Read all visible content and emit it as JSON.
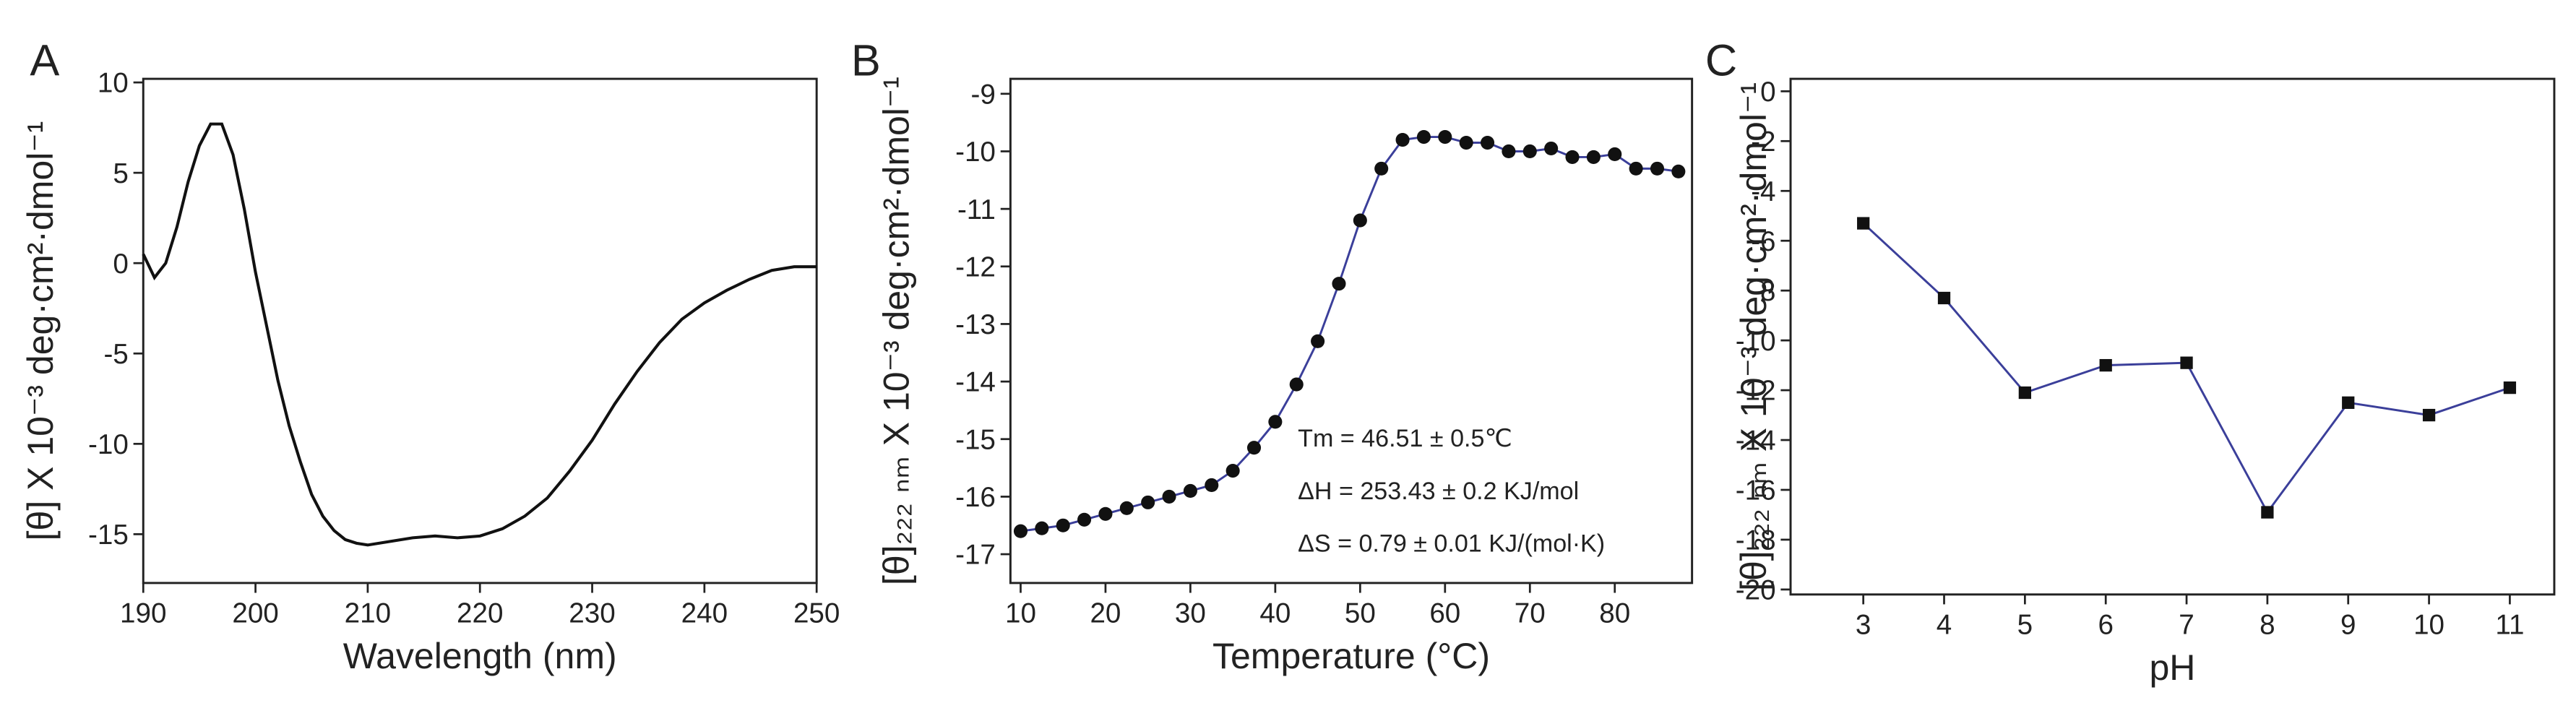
{
  "chart_data": [
    {
      "type": "line",
      "panel_label": "A",
      "x_label": "Wavelength (nm)",
      "y_label": "[θ] X 10⁻³ deg·cm²·dmol⁻¹",
      "x": [
        190,
        191,
        192,
        193,
        194,
        195,
        196,
        197,
        198,
        199,
        200,
        201,
        202,
        203,
        204,
        205,
        206,
        207,
        208,
        209,
        210,
        212,
        214,
        216,
        218,
        220,
        222,
        224,
        226,
        228,
        230,
        232,
        234,
        236,
        238,
        240,
        242,
        244,
        246,
        248,
        250
      ],
      "values": [
        0.5,
        -0.8,
        0,
        2,
        4.5,
        6.5,
        7.7,
        7.7,
        6,
        3,
        -0.5,
        -3.5,
        -6.5,
        -9,
        -11,
        -12.8,
        -14,
        -14.8,
        -15.3,
        -15.5,
        -15.6,
        -15.4,
        -15.2,
        -15.1,
        -15.2,
        -15.1,
        -14.7,
        -14,
        -13,
        -11.5,
        -9.8,
        -7.8,
        -6,
        -4.4,
        -3.1,
        -2.2,
        -1.5,
        -0.9,
        -0.4,
        -0.2,
        -0.2
      ],
      "color": "#111111",
      "marker": null,
      "xlim": [
        190,
        250
      ],
      "ylim": [
        -17.7,
        10.2
      ],
      "xticks": [
        190,
        200,
        210,
        220,
        230,
        240,
        250
      ],
      "yticks": [
        10,
        5,
        0,
        -5,
        -10,
        -15
      ]
    },
    {
      "type": "line",
      "panel_label": "B",
      "x_label": "Temperature (°C)",
      "y_label": "[θ]₂₂₂ ₙₘ X 10⁻³ deg·cm²·dmol⁻¹",
      "x": [
        10,
        12.5,
        15,
        17.5,
        20,
        22.5,
        25,
        27.5,
        30,
        32.5,
        35,
        37.5,
        40,
        42.5,
        45,
        47.5,
        50,
        52.5,
        55,
        57.5,
        60,
        62.5,
        65,
        67.5,
        70,
        72.5,
        75,
        77.5,
        80,
        82.5,
        85,
        87.5
      ],
      "values": [
        -16.6,
        -16.55,
        -16.5,
        -16.4,
        -16.3,
        -16.2,
        -16.1,
        -16.0,
        -15.9,
        -15.8,
        -15.55,
        -15.15,
        -14.7,
        -14.05,
        -13.3,
        -12.3,
        -11.2,
        -10.3,
        -9.8,
        -9.75,
        -9.75,
        -9.85,
        -9.85,
        -10.0,
        -10.0,
        -9.95,
        -10.1,
        -10.1,
        -10.05,
        -10.3,
        -10.3,
        -10.35
      ],
      "color": "#3b3f9a",
      "marker": "circle",
      "marker_color": "#111111",
      "xlim": [
        8.8,
        89.1
      ],
      "ylim": [
        -17.5,
        -8.74
      ],
      "xticks": [
        10,
        20,
        30,
        40,
        50,
        60,
        70,
        80
      ],
      "yticks": [
        -9,
        -10,
        -11,
        -12,
        -13,
        -14,
        -15,
        -16,
        -17
      ],
      "annotations": [
        "Tm = 46.51 ± 0.5℃",
        "ΔH = 253.43 ± 0.2 KJ/mol",
        "ΔS = 0.79 ± 0.01 KJ/(mol·K)"
      ]
    },
    {
      "type": "line",
      "panel_label": "C",
      "x_label": "pH",
      "y_label": "[θ]₂₂₂ ₙₘ X 10⁻³ deg·cm²·dmol⁻¹",
      "x": [
        3,
        4,
        5,
        6,
        7,
        8,
        9,
        10,
        11
      ],
      "values": [
        -5.3,
        -8.3,
        -12.1,
        -11.0,
        -10.9,
        -16.9,
        -12.5,
        -13.0,
        -11.9
      ],
      "color": "#3b3f9a",
      "marker": "square",
      "marker_color": "#111111",
      "xlim": [
        2.1,
        11.55
      ],
      "ylim": [
        -20.2,
        0.5
      ],
      "xticks": [
        3,
        4,
        5,
        6,
        7,
        8,
        9,
        10,
        11
      ],
      "yticks": [
        0,
        -2,
        -4,
        -6,
        -8,
        -10,
        -12,
        -14,
        -16,
        -18,
        -20
      ]
    }
  ]
}
